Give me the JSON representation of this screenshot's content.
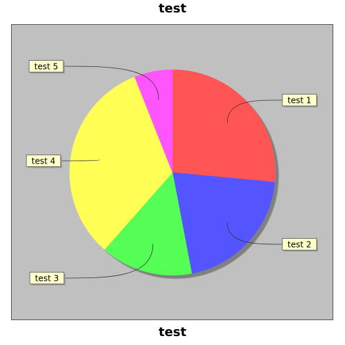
{
  "chart_data": {
    "type": "pie",
    "title": "test",
    "subtitle": "test",
    "background_color": "#c0c0c0",
    "start_angle_deg": 90,
    "direction": "clockwise",
    "slices": [
      {
        "label": "test 1",
        "value": 26.5,
        "color": "#ff5555"
      },
      {
        "label": "test 2",
        "value": 20.5,
        "color": "#5555ff"
      },
      {
        "label": "test 3",
        "value": 14.5,
        "color": "#55ff55"
      },
      {
        "label": "test 4",
        "value": 32.5,
        "color": "#ffff55"
      },
      {
        "label": "test 5",
        "value": 6.0,
        "color": "#ff55ff"
      }
    ],
    "label_style": {
      "background": "#ffffcc",
      "border": "#555555"
    }
  }
}
